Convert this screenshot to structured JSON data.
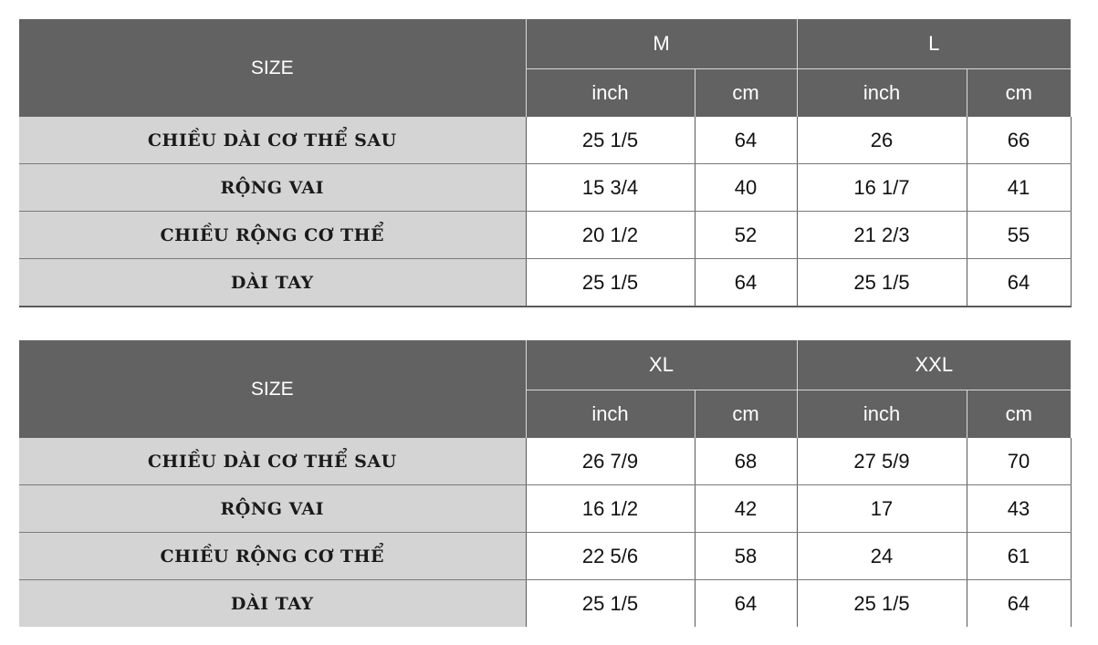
{
  "tables": [
    {
      "size_label": "SIZE",
      "groups": [
        {
          "name": "M",
          "units": [
            "inch",
            "cm"
          ]
        },
        {
          "name": "L",
          "units": [
            "inch",
            "cm"
          ]
        }
      ],
      "rows": [
        {
          "label": "CHIỀU DÀI CƠ THỂ SAU",
          "values": [
            "25 1/5",
            "64",
            "26",
            "66"
          ]
        },
        {
          "label": "RỘNG VAI",
          "values": [
            "15 3/4",
            "40",
            "16 1/7",
            "41"
          ]
        },
        {
          "label": "CHIỀU RỘNG CƠ THỂ",
          "values": [
            "20 1/2",
            "52",
            "21 2/3",
            "55"
          ]
        },
        {
          "label": "DÀI TAY",
          "values": [
            "25 1/5",
            "64",
            "25 1/5",
            "64"
          ]
        }
      ]
    },
    {
      "size_label": "SIZE",
      "groups": [
        {
          "name": "XL",
          "units": [
            "inch",
            "cm"
          ]
        },
        {
          "name": "XXL",
          "units": [
            "inch",
            "cm"
          ]
        }
      ],
      "rows": [
        {
          "label": "CHIỀU DÀI CƠ THỂ SAU",
          "values": [
            "26 7/9",
            "68",
            "27 5/9",
            "70"
          ]
        },
        {
          "label": "RỘNG VAI",
          "values": [
            "16 1/2",
            "42",
            "17",
            "43"
          ]
        },
        {
          "label": "CHIỀU RỘNG CƠ THỂ",
          "values": [
            "22 5/6",
            "58",
            "24",
            "61"
          ]
        },
        {
          "label": "DÀI TAY",
          "values": [
            "25 1/5",
            "64",
            "25 1/5",
            "64"
          ]
        }
      ]
    }
  ]
}
